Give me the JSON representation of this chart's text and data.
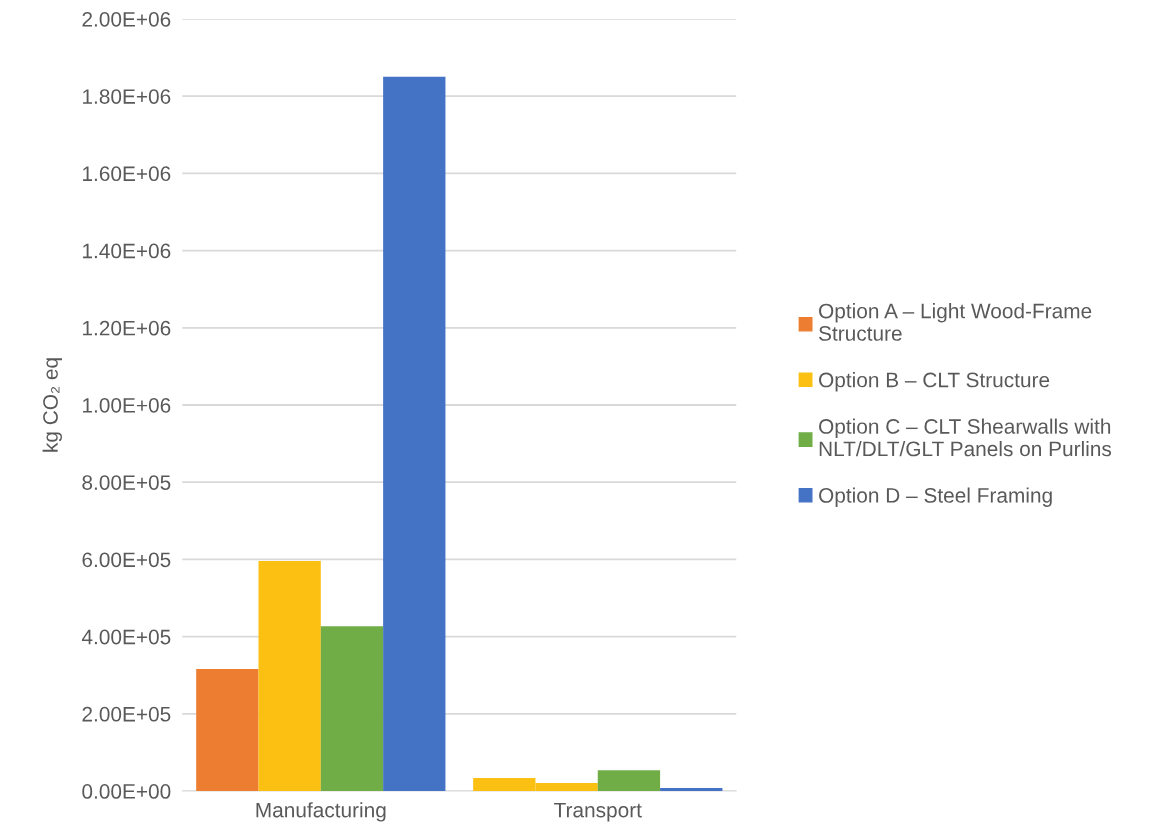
{
  "chart_data": {
    "type": "bar",
    "ylabel": "kg CO₂ eq",
    "categories": [
      "Manufacturing",
      "Transport"
    ],
    "series": [
      {
        "name": "Option A – Light Wood-Frame Structure",
        "color": "#ed7d31",
        "colors": [
          "#ed7d31",
          "#fbc012"
        ],
        "values": [
          316000,
          34000
        ]
      },
      {
        "name": "Option B – CLT Structure",
        "color": "#fbc012",
        "values": [
          596000,
          21000
        ]
      },
      {
        "name": "Option C – CLT Shearwalls with NLT/DLT/GLT Panels on Purlins",
        "color": "#70ad47",
        "values": [
          427000,
          54000
        ]
      },
      {
        "name": "Option D – Steel Framing",
        "color": "#4472c4",
        "values": [
          1850000,
          8000
        ]
      }
    ],
    "ylim": [
      0,
      2000000
    ],
    "yticks": [
      {
        "value": 0,
        "label": "0.00E+00"
      },
      {
        "value": 200000,
        "label": "2.00E+05"
      },
      {
        "value": 400000,
        "label": "4.00E+05"
      },
      {
        "value": 600000,
        "label": "6.00E+05"
      },
      {
        "value": 800000,
        "label": "8.00E+05"
      },
      {
        "value": 1000000,
        "label": "1.00E+06"
      },
      {
        "value": 1200000,
        "label": "1.20E+06"
      },
      {
        "value": 1400000,
        "label": "1.40E+06"
      },
      {
        "value": 1600000,
        "label": "1.60E+06"
      },
      {
        "value": 1800000,
        "label": "1.80E+06"
      },
      {
        "value": 2000000,
        "label": "2.00E+06"
      }
    ],
    "grid": "y",
    "legend": "right"
  }
}
